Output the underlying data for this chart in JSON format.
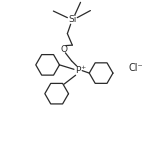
{
  "bg_color": "#ffffff",
  "line_color": "#2a2a2a",
  "text_color": "#2a2a2a",
  "line_width": 0.9,
  "figsize": [
    1.66,
    1.61
  ],
  "dpi": 100,
  "Si_label": "Si",
  "O_label": "O",
  "P_label": "P",
  "plus_label": "+",
  "Cl_label": "Cl⁻"
}
